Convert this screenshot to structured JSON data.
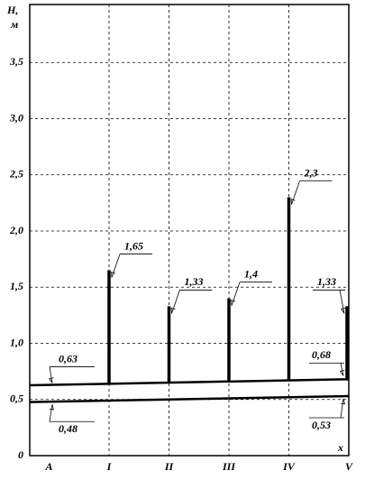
{
  "chart_data": {
    "type": "bar",
    "ylabel": "H,",
    "yunit": "м",
    "xlabel": "x",
    "categories": [
      "A",
      "I",
      "II",
      "III",
      "IV",
      "V"
    ],
    "ylim": [
      0,
      4
    ],
    "yticks": [
      0,
      {
        "value": 0.5,
        "label": "0,5"
      },
      {
        "value": 1.0,
        "label": "1,0"
      },
      {
        "value": 1.5,
        "label": "1,5"
      },
      {
        "value": 2.0,
        "label": "2,0"
      },
      {
        "value": 2.5,
        "label": "2,5"
      },
      {
        "value": 3.0,
        "label": "3,0"
      },
      {
        "value": 3.5,
        "label": "3,5"
      }
    ],
    "grid": true,
    "bars": {
      "values": [
        null,
        1.65,
        1.33,
        1.4,
        2.3,
        1.33
      ],
      "value_labels": [
        null,
        "1,65",
        "1,33",
        "1,4",
        "2,3",
        "1,33"
      ],
      "color": "#000000"
    },
    "lines": [
      {
        "values": [
          0.63,
          0.68
        ],
        "value_labels": [
          "0,63",
          "0,68"
        ],
        "color": "#000000"
      },
      {
        "values": [
          0.48,
          0.53
        ],
        "value_labels": [
          "0,48",
          "0,53"
        ],
        "color": "#000000"
      }
    ]
  }
}
